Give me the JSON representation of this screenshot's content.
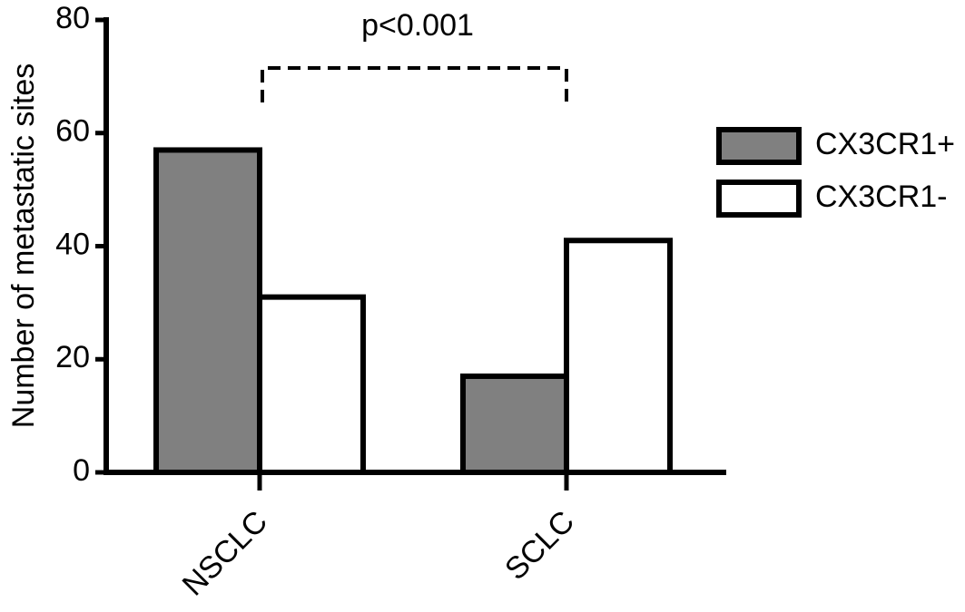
{
  "chart_data": {
    "type": "bar",
    "ylabel": "Number of metastatic sites",
    "annotation": "p<0.001",
    "categories": [
      "NSCLC",
      "SCLC"
    ],
    "series": [
      {
        "name": "CX3CR1+",
        "color": "#808080",
        "values": [
          57,
          17
        ]
      },
      {
        "name": "CX3CR1-",
        "color": "#ffffff",
        "values": [
          31,
          41
        ]
      }
    ],
    "ylim": [
      0,
      80
    ],
    "yticks": [
      0,
      20,
      40,
      60,
      80
    ]
  }
}
